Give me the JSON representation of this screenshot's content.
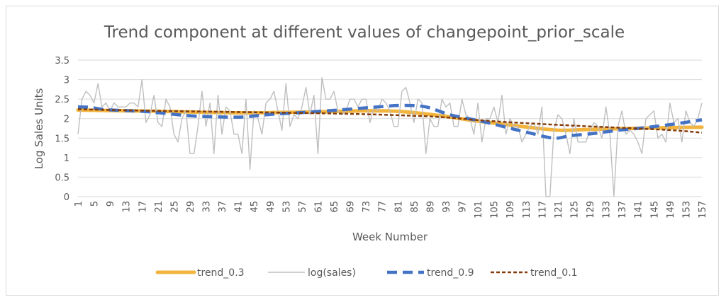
{
  "chart_data": {
    "type": "line",
    "title": "Trend component at different values of changepoint_prior_scale",
    "xlabel": "Week Number",
    "ylabel": "Log Sales Units",
    "ylim": [
      0,
      3.5
    ],
    "y_ticks": [
      "0",
      "0.5",
      "1",
      "1.5",
      "2",
      "2.5",
      "3",
      "3.5"
    ],
    "x_ticks": [
      "1",
      "5",
      "9",
      "13",
      "17",
      "21",
      "25",
      "29",
      "33",
      "37",
      "41",
      "45",
      "49",
      "53",
      "57",
      "61",
      "65",
      "69",
      "73",
      "77",
      "81",
      "85",
      "89",
      "93",
      "97",
      "101",
      "105",
      "109",
      "113",
      "117",
      "121",
      "125",
      "129",
      "133",
      "137",
      "141",
      "145",
      "149",
      "153",
      "157"
    ],
    "x_range": [
      1,
      157
    ],
    "grid": "horizontal",
    "legend_position": "bottom",
    "series": [
      {
        "name": "trend_0.3",
        "color": "#f2b43c",
        "style": "solid-thick",
        "points": [
          [
            1,
            2.22
          ],
          [
            20,
            2.19
          ],
          [
            40,
            2.15
          ],
          [
            60,
            2.17
          ],
          [
            72,
            2.2
          ],
          [
            82,
            2.18
          ],
          [
            92,
            2.07
          ],
          [
            100,
            1.95
          ],
          [
            108,
            1.85
          ],
          [
            116,
            1.75
          ],
          [
            122,
            1.7
          ],
          [
            128,
            1.72
          ],
          [
            136,
            1.74
          ],
          [
            144,
            1.76
          ],
          [
            150,
            1.77
          ],
          [
            157,
            1.78
          ]
        ]
      },
      {
        "name": "log(sales)",
        "color": "#bfbfbf",
        "style": "solid-thin",
        "values": [
          1.6,
          2.5,
          2.7,
          2.6,
          2.4,
          2.9,
          2.3,
          2.4,
          2.2,
          2.4,
          2.3,
          2.3,
          2.3,
          2.4,
          2.4,
          2.3,
          3.0,
          1.9,
          2.1,
          2.6,
          1.9,
          1.8,
          2.5,
          2.3,
          1.6,
          1.4,
          2.0,
          2.2,
          1.1,
          1.1,
          1.8,
          2.7,
          1.8,
          2.4,
          1.1,
          2.6,
          1.6,
          2.3,
          2.2,
          1.6,
          1.6,
          1.1,
          2.5,
          0.7,
          2.2,
          2.0,
          1.6,
          2.4,
          2.5,
          2.7,
          2.2,
          1.7,
          2.9,
          1.8,
          2.1,
          2.0,
          2.3,
          2.8,
          2.1,
          2.6,
          1.1,
          3.05,
          2.5,
          2.5,
          2.7,
          2.2,
          2.1,
          2.2,
          2.5,
          2.5,
          2.3,
          2.5,
          2.5,
          1.9,
          2.3,
          2.2,
          2.5,
          2.4,
          2.2,
          1.8,
          1.8,
          2.7,
          2.8,
          2.4,
          1.9,
          2.5,
          2.4,
          1.1,
          2.0,
          1.8,
          1.8,
          2.5,
          2.3,
          2.4,
          1.8,
          1.8,
          2.5,
          2.1,
          2.0,
          1.6,
          2.4,
          1.4,
          2.0,
          2.0,
          2.3,
          1.9,
          2.6,
          1.6,
          2.0,
          1.8,
          1.8,
          1.4,
          1.6,
          1.8,
          1.9,
          1.6,
          2.3,
          0.0,
          0.0,
          1.7,
          2.1,
          2.0,
          1.6,
          1.1,
          2.0,
          1.4,
          1.4,
          1.4,
          1.7,
          1.9,
          1.8,
          1.5,
          2.3,
          1.6,
          0.0,
          1.8,
          2.2,
          1.6,
          1.7,
          1.6,
          1.4,
          1.1,
          2.0,
          2.1,
          2.2,
          1.5,
          1.6,
          1.4,
          2.4,
          1.9,
          2.0,
          1.4,
          2.2,
          1.9,
          1.8,
          2.0,
          2.4
        ],
        "values_approx": true
      },
      {
        "name": "trend_0.9",
        "color": "#4472c4",
        "style": "dashed-thick",
        "points": [
          [
            1,
            2.3
          ],
          [
            4,
            2.29
          ],
          [
            8,
            2.23
          ],
          [
            18,
            2.18
          ],
          [
            28,
            2.08
          ],
          [
            34,
            2.05
          ],
          [
            42,
            2.04
          ],
          [
            48,
            2.1
          ],
          [
            56,
            2.15
          ],
          [
            66,
            2.22
          ],
          [
            76,
            2.3
          ],
          [
            82,
            2.34
          ],
          [
            88,
            2.3
          ],
          [
            94,
            2.1
          ],
          [
            102,
            1.93
          ],
          [
            108,
            1.78
          ],
          [
            114,
            1.63
          ],
          [
            120,
            1.5
          ],
          [
            124,
            1.56
          ],
          [
            130,
            1.62
          ],
          [
            136,
            1.7
          ],
          [
            142,
            1.76
          ],
          [
            150,
            1.86
          ],
          [
            157,
            1.97
          ]
        ]
      },
      {
        "name": "trend_0.1",
        "color": "#843c0c",
        "style": "dotted",
        "points": [
          [
            1,
            2.24
          ],
          [
            20,
            2.2
          ],
          [
            40,
            2.17
          ],
          [
            70,
            2.12
          ],
          [
            90,
            2.05
          ],
          [
            100,
            1.97
          ],
          [
            110,
            1.9
          ],
          [
            125,
            1.82
          ],
          [
            140,
            1.75
          ],
          [
            150,
            1.7
          ],
          [
            157,
            1.64
          ]
        ]
      }
    ]
  }
}
